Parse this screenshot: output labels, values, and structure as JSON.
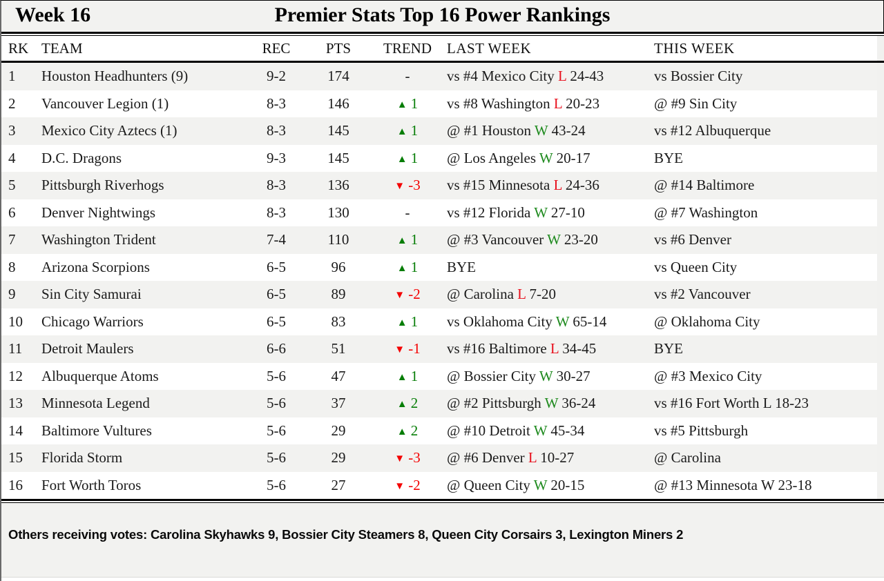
{
  "header": {
    "week_label": "Week 16",
    "title": "Premier Stats Top 16 Power Rankings"
  },
  "columns": {
    "rk": "RK",
    "team": "TEAM",
    "rec": "REC",
    "pts": "PTS",
    "trend": "TREND",
    "last_week": "LAST WEEK",
    "this_week": "THIS WEEK"
  },
  "colors": {
    "win_green": "#1e8a1e",
    "loss_red": "#e8101d",
    "trend_up_green": "#067d06",
    "trend_down_red": "#f40000",
    "row_alt_gray": "#f2f2f0"
  },
  "rows": [
    {
      "rank": "1",
      "team": "Houston Headhunters (9)",
      "rec": "9-2",
      "pts": "174",
      "trend": {
        "dir": "none",
        "value": "-"
      },
      "last_week": {
        "prefix": "vs #4 Mexico City ",
        "result": "L",
        "score": " 24-43"
      },
      "this_week": "vs Bossier City"
    },
    {
      "rank": "2",
      "team": "Vancouver Legion (1)",
      "rec": "8-3",
      "pts": "146",
      "trend": {
        "dir": "up",
        "value": "1"
      },
      "last_week": {
        "prefix": "vs #8 Washington ",
        "result": "L",
        "score": " 20-23"
      },
      "this_week": "@ #9 Sin City"
    },
    {
      "rank": "3",
      "team": "Mexico City Aztecs (1)",
      "rec": "8-3",
      "pts": "145",
      "trend": {
        "dir": "up",
        "value": "1"
      },
      "last_week": {
        "prefix": "@ #1 Houston ",
        "result": "W",
        "score": " 43-24"
      },
      "this_week": "vs #12 Albuquerque"
    },
    {
      "rank": "4",
      "team": "D.C. Dragons",
      "rec": "9-3",
      "pts": "145",
      "trend": {
        "dir": "up",
        "value": "1"
      },
      "last_week": {
        "prefix": "@ Los Angeles ",
        "result": "W",
        "score": " 20-17"
      },
      "this_week": "BYE"
    },
    {
      "rank": "5",
      "team": "Pittsburgh Riverhogs",
      "rec": "8-3",
      "pts": "136",
      "trend": {
        "dir": "down",
        "value": "-3"
      },
      "last_week": {
        "prefix": "vs #15 Minnesota ",
        "result": "L",
        "score": " 24-36"
      },
      "this_week": "@ #14 Baltimore"
    },
    {
      "rank": "6",
      "team": "Denver Nightwings",
      "rec": "8-3",
      "pts": "130",
      "trend": {
        "dir": "none",
        "value": "-"
      },
      "last_week": {
        "prefix": "vs #12 Florida ",
        "result": "W",
        "score": " 27-10"
      },
      "this_week": "@ #7 Washington"
    },
    {
      "rank": "7",
      "team": "Washington Trident",
      "rec": "7-4",
      "pts": "110",
      "trend": {
        "dir": "up",
        "value": "1"
      },
      "last_week": {
        "prefix": "@ #3 Vancouver ",
        "result": "W",
        "score": " 23-20"
      },
      "this_week": "vs #6 Denver"
    },
    {
      "rank": "8",
      "team": "Arizona Scorpions",
      "rec": "6-5",
      "pts": "96",
      "trend": {
        "dir": "up",
        "value": "1"
      },
      "last_week": {
        "prefix": "BYE",
        "result": null,
        "score": ""
      },
      "this_week": "vs Queen City"
    },
    {
      "rank": "9",
      "team": "Sin City Samurai",
      "rec": "6-5",
      "pts": "89",
      "trend": {
        "dir": "down",
        "value": "-2"
      },
      "last_week": {
        "prefix": "@ Carolina ",
        "result": "L",
        "score": " 7-20"
      },
      "this_week": "vs #2 Vancouver"
    },
    {
      "rank": "10",
      "team": "Chicago Warriors",
      "rec": "6-5",
      "pts": "83",
      "trend": {
        "dir": "up",
        "value": "1"
      },
      "last_week": {
        "prefix": "vs Oklahoma City ",
        "result": "W",
        "score": " 65-14"
      },
      "this_week": "@ Oklahoma City"
    },
    {
      "rank": "11",
      "team": "Detroit Maulers",
      "rec": "6-6",
      "pts": "51",
      "trend": {
        "dir": "down",
        "value": "-1"
      },
      "last_week": {
        "prefix": "vs #16 Baltimore ",
        "result": "L",
        "score": " 34-45"
      },
      "this_week": "BYE"
    },
    {
      "rank": "12",
      "team": "Albuquerque Atoms",
      "rec": "5-6",
      "pts": "47",
      "trend": {
        "dir": "up",
        "value": "1"
      },
      "last_week": {
        "prefix": "@ Bossier City ",
        "result": "W",
        "score": " 30-27"
      },
      "this_week": "@ #3 Mexico City"
    },
    {
      "rank": "13",
      "team": "Minnesota Legend",
      "rec": "5-6",
      "pts": "37",
      "trend": {
        "dir": "up",
        "value": "2"
      },
      "last_week": {
        "prefix": "@ #2 Pittsburgh ",
        "result": "W",
        "score": " 36-24"
      },
      "this_week": "vs #16 Fort Worth L 18-23"
    },
    {
      "rank": "14",
      "team": "Baltimore Vultures",
      "rec": "5-6",
      "pts": "29",
      "trend": {
        "dir": "up",
        "value": "2"
      },
      "last_week": {
        "prefix": "@ #10 Detroit ",
        "result": "W",
        "score": " 45-34"
      },
      "this_week": "vs #5 Pittsburgh"
    },
    {
      "rank": "15",
      "team": "Florida Storm",
      "rec": "5-6",
      "pts": "29",
      "trend": {
        "dir": "down",
        "value": "-3"
      },
      "last_week": {
        "prefix": "@ #6 Denver ",
        "result": "L",
        "score": " 10-27"
      },
      "this_week": "@ Carolina"
    },
    {
      "rank": "16",
      "team": "Fort Worth Toros",
      "rec": "5-6",
      "pts": "27",
      "trend": {
        "dir": "down",
        "value": "-2"
      },
      "last_week": {
        "prefix": "@ Queen City ",
        "result": "W",
        "score": " 20-15"
      },
      "this_week": "@ #13 Minnesota W 23-18"
    }
  ],
  "trend_glyphs": {
    "up": "▲",
    "down": "▼"
  },
  "footer": {
    "others": "Others receiving votes: Carolina Skyhawks 9, Bossier City Steamers 8, Queen City Corsairs 3, Lexington Miners 2"
  }
}
